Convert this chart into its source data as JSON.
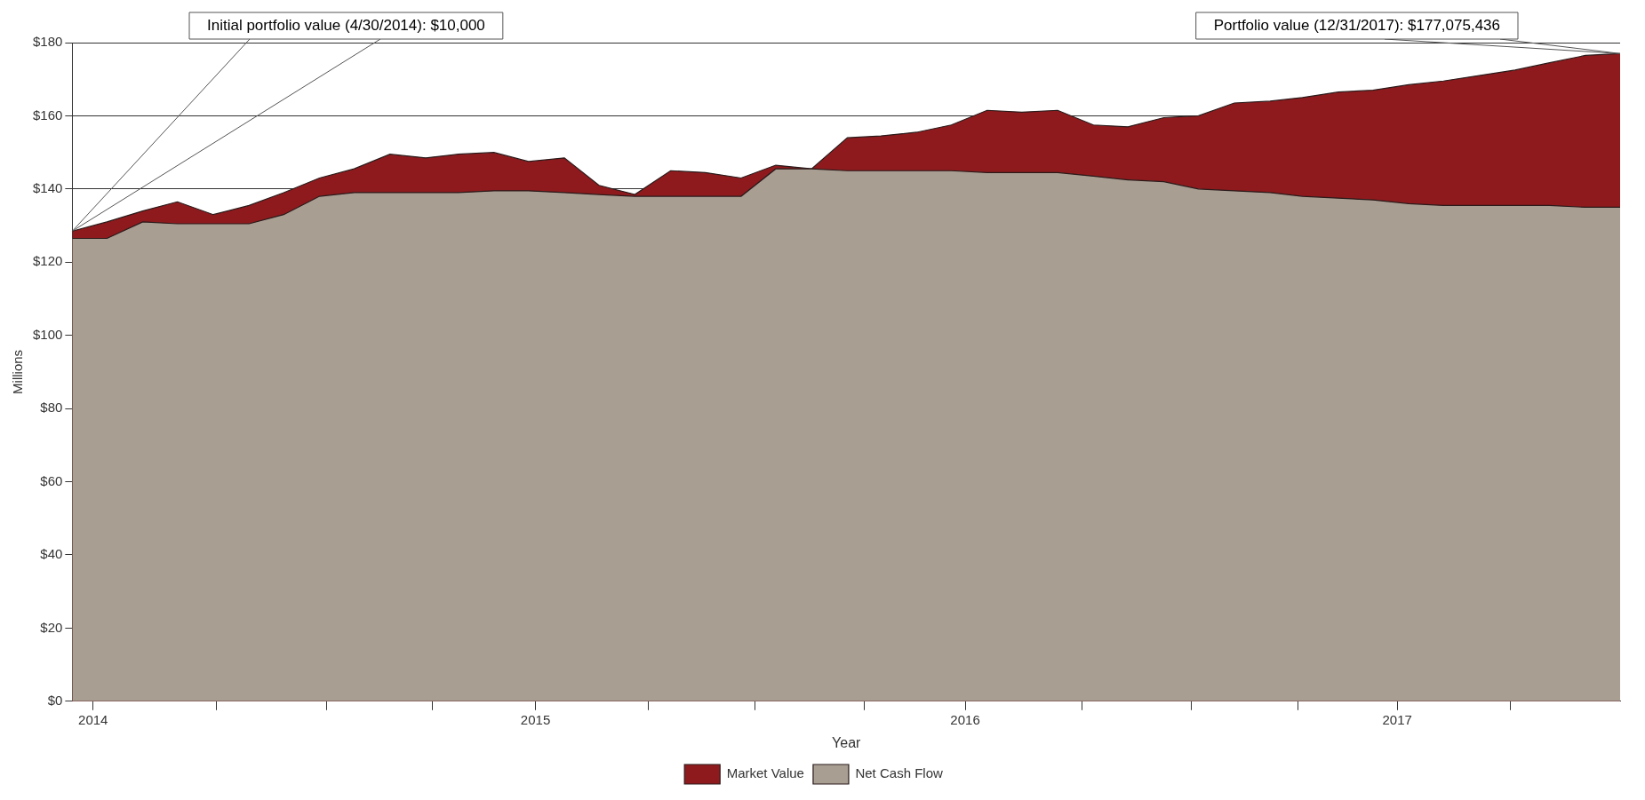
{
  "chart_data": {
    "type": "area",
    "xlabel": "Year",
    "ylabel": "Millions",
    "x": [
      "2014-04",
      "2014-05",
      "2014-06",
      "2014-07",
      "2014-08",
      "2014-09",
      "2014-10",
      "2014-11",
      "2014-12",
      "2015-01",
      "2015-02",
      "2015-03",
      "2015-04",
      "2015-05",
      "2015-06",
      "2015-07",
      "2015-08",
      "2015-09",
      "2015-10",
      "2015-11",
      "2015-12",
      "2016-01",
      "2016-02",
      "2016-03",
      "2016-04",
      "2016-05",
      "2016-06",
      "2016-07",
      "2016-08",
      "2016-09",
      "2016-10",
      "2016-11",
      "2016-12",
      "2017-01",
      "2017-02",
      "2017-03",
      "2017-04",
      "2017-05",
      "2017-06",
      "2017-07",
      "2017-08",
      "2017-09",
      "2017-10",
      "2017-11",
      "2017-12"
    ],
    "series": [
      {
        "name": "Market Value",
        "color": "#8f1a1d",
        "values": [
          128.5,
          131,
          134,
          136.5,
          133,
          135.5,
          139,
          143,
          145.5,
          149.5,
          148.5,
          149.5,
          150,
          147.5,
          148.5,
          141,
          138.5,
          145,
          144.5,
          143,
          146.5,
          145.5,
          154,
          154.5,
          155.5,
          157.5,
          161.5,
          161,
          161.5,
          157.5,
          157,
          159.5,
          160,
          163.5,
          164,
          165,
          166.5,
          167,
          168.5,
          169.5,
          171,
          172.5,
          174.5,
          176.5,
          177
        ]
      },
      {
        "name": "Net Cash Flow",
        "color": "#a89e92",
        "values": [
          126.5,
          126.5,
          131,
          130.5,
          130.5,
          130.5,
          133,
          138,
          139,
          139,
          139,
          139,
          139.5,
          139.5,
          139,
          138.5,
          138,
          138,
          138,
          138,
          145.5,
          145.5,
          145,
          145,
          145,
          145,
          144.5,
          144.5,
          144.5,
          143.5,
          142.5,
          142,
          140,
          139.5,
          139,
          138,
          137.5,
          137,
          136,
          135.5,
          135.5,
          135.5,
          135.5,
          135,
          135
        ]
      }
    ],
    "xlim": [
      "2014-04",
      "2017-12"
    ],
    "xticks": [
      {
        "value": "2014-04-19",
        "label": "2014"
      },
      {
        "value": "2014-08-04",
        "label": null
      },
      {
        "value": "2014-11-07",
        "label": null
      },
      {
        "value": "2015-02-07",
        "label": null
      },
      {
        "value": "2015-05-07",
        "label": "2015"
      },
      {
        "value": "2015-08-13",
        "label": null
      },
      {
        "value": "2015-11-13",
        "label": null
      },
      {
        "value": "2016-02-16",
        "label": null
      },
      {
        "value": "2016-05-13",
        "label": "2016"
      },
      {
        "value": "2016-08-22",
        "label": null
      },
      {
        "value": "2016-11-25",
        "label": null
      },
      {
        "value": "2017-02-25",
        "label": null
      },
      {
        "value": "2017-05-22",
        "label": "2017"
      },
      {
        "value": "2017-08-28",
        "label": null
      }
    ],
    "ylim": [
      0,
      180
    ],
    "yticks": [
      {
        "value": 0,
        "label": "$0"
      },
      {
        "value": 20,
        "label": "$20"
      },
      {
        "value": 40,
        "label": "$40"
      },
      {
        "value": 60,
        "label": "$60"
      },
      {
        "value": 80,
        "label": "$80"
      },
      {
        "value": 100,
        "label": "$100"
      },
      {
        "value": 120,
        "label": "$120"
      },
      {
        "value": 140,
        "label": "$140"
      },
      {
        "value": 160,
        "label": "$160"
      },
      {
        "value": 180,
        "label": "$180"
      }
    ],
    "grid": "y",
    "legend": "bottom",
    "annotations": [
      {
        "text": "Initial portfolio value (4/30/2014): $10,000",
        "x": "2014-04",
        "y": 128.5
      },
      {
        "text": "Portfolio value (12/31/2017): $177,075,436",
        "x": "2017-12",
        "y": 177
      }
    ]
  }
}
